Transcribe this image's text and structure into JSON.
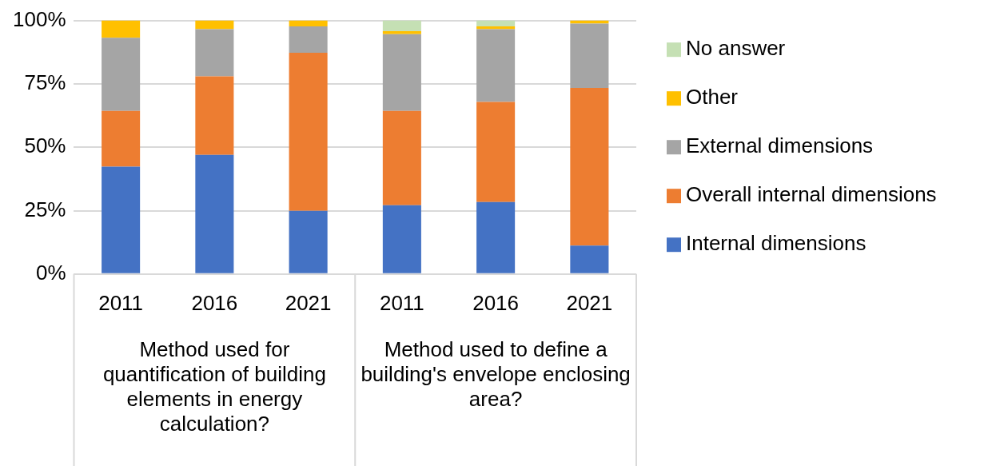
{
  "chart_data": {
    "type": "bar",
    "stacked": true,
    "categories": [
      "2011",
      "2016",
      "2021",
      "2011",
      "2016",
      "2021"
    ],
    "series": [
      {
        "name": "Internal dimensions",
        "color": "#4472c4",
        "values": [
          42.3,
          47.0,
          24.9,
          27.1,
          28.4,
          11.2
        ]
      },
      {
        "name": "Overall internal dimensions",
        "color": "#ed7d31",
        "values": [
          22.0,
          31.0,
          62.4,
          37.2,
          39.5,
          62.2
        ]
      },
      {
        "name": "External dimensions",
        "color": "#a5a5a5",
        "values": [
          28.9,
          18.6,
          10.4,
          30.3,
          28.7,
          25.4
        ]
      },
      {
        "name": "Other",
        "color": "#ffc000",
        "values": [
          6.8,
          3.4,
          2.3,
          1.2,
          1.1,
          1.2
        ]
      },
      {
        "name": "No answer",
        "color": "#c5e0b4",
        "values": [
          0,
          0,
          0,
          4.2,
          2.3,
          0
        ]
      }
    ],
    "ylim": [
      0,
      100
    ],
    "yticks": [
      {
        "value": 0,
        "label": "0%"
      },
      {
        "value": 25,
        "label": "25%"
      },
      {
        "value": 50,
        "label": "50%"
      },
      {
        "value": 75,
        "label": "75%"
      },
      {
        "value": 100,
        "label": "100%"
      }
    ],
    "grid": "y",
    "legend": "right",
    "annotations": [
      "Method used for quantification of building elements in energy calculation?",
      "Method used to define a building's envelope enclosing area?"
    ]
  }
}
